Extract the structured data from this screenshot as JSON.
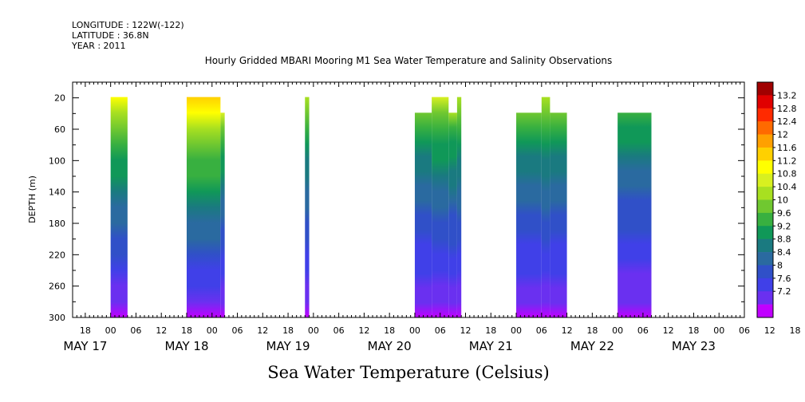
{
  "header": {
    "longitude": "LONGITUDE : 122W(-122)",
    "latitude": "LATITUDE : 36.8N",
    "year": "YEAR : 2011"
  },
  "chart_data": {
    "type": "heatmap",
    "title": "Hourly Gridded MBARI Mooring M1 Sea Water Temperature and Salinity Observations",
    "xlabel": "Sea Water Temperature (Celsius)",
    "ylabel": "DEPTH (m)",
    "xlim_hours": [
      -9,
      150
    ],
    "ylim": [
      300,
      0
    ],
    "y_ticks": [
      20,
      60,
      100,
      140,
      180,
      220,
      260,
      300
    ],
    "x_hour_ticks": [
      "18",
      "00",
      "06",
      "12",
      "18",
      "00",
      "06",
      "12",
      "18",
      "00",
      "06",
      "12",
      "18",
      "00",
      "06",
      "12",
      "18",
      "00",
      "06",
      "12",
      "18",
      "00",
      "06",
      "12",
      "18",
      "00",
      "06",
      "12",
      "18",
      "00"
    ],
    "x_day_labels": [
      "MAY 17",
      "MAY 18",
      "MAY 19",
      "MAY 20",
      "MAY 21",
      "MAY 22",
      "MAY 23"
    ],
    "colorbar": {
      "levels": [
        "13.2",
        "12.8",
        "12.4",
        "12",
        "11.6",
        "11.2",
        "10.8",
        "10.4",
        "10",
        "9.6",
        "9.2",
        "8.8",
        "8.4",
        "8",
        "7.6",
        "7.2"
      ],
      "colors": [
        "#a00000",
        "#e00000",
        "#ff2a00",
        "#ff6a00",
        "#ffa000",
        "#ffd000",
        "#ffff00",
        "#d8f020",
        "#a8e020",
        "#70c830",
        "#38b040",
        "#109858",
        "#1a7a80",
        "#2a6aa0",
        "#3050c8",
        "#4040e8",
        "#6a30f0",
        "#c000ff"
      ]
    },
    "data_blocks": [
      {
        "start": 0,
        "end": 4,
        "top_depth": 20,
        "surface_temp": 11.0
      },
      {
        "start": 18,
        "end": 26,
        "top_depth": 20,
        "surface_temp": 11.6
      },
      {
        "start": 26,
        "end": 27,
        "top_depth": 40,
        "surface_temp": 10.6
      },
      {
        "start": 46,
        "end": 47,
        "top_depth": 20,
        "surface_temp": 10.4
      },
      {
        "start": 72,
        "end": 76,
        "top_depth": 40,
        "surface_temp": 10.0
      },
      {
        "start": 76,
        "end": 80,
        "top_depth": 20,
        "surface_temp": 10.6
      },
      {
        "start": 80,
        "end": 82,
        "top_depth": 40,
        "surface_temp": 10.2
      },
      {
        "start": 82,
        "end": 83,
        "top_depth": 20,
        "surface_temp": 10.4
      },
      {
        "start": 96,
        "end": 102,
        "top_depth": 40,
        "surface_temp": 10.0
      },
      {
        "start": 102,
        "end": 104,
        "top_depth": 20,
        "surface_temp": 10.4
      },
      {
        "start": 104,
        "end": 108,
        "top_depth": 40,
        "surface_temp": 10.0
      },
      {
        "start": 120,
        "end": 128,
        "top_depth": 40,
        "surface_temp": 9.8
      }
    ]
  }
}
